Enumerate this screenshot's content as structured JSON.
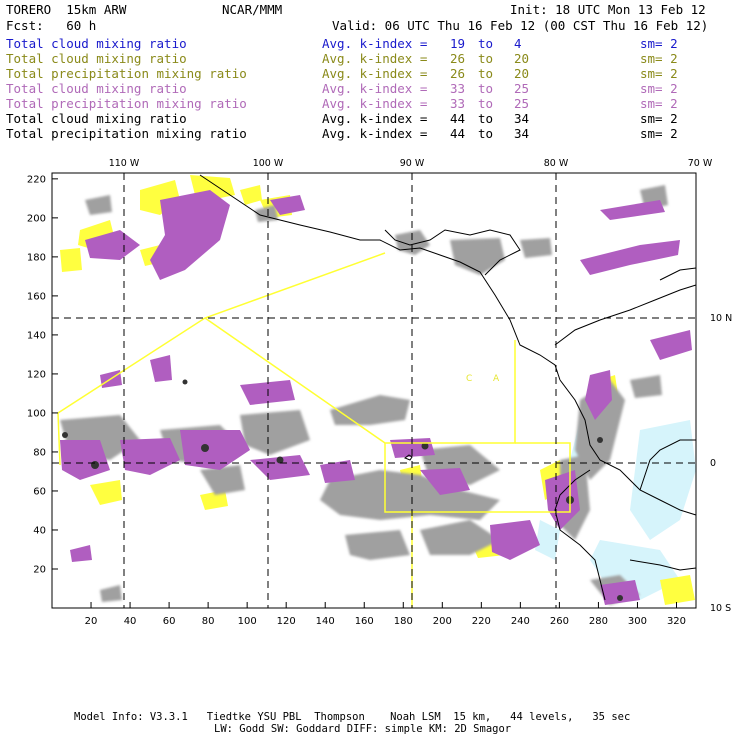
{
  "header": {
    "model": "TORERO  15km ARW",
    "org": "NCAR/MMM",
    "init": "Init: 18 UTC Mon 13 Feb 12",
    "fcst": "Fcst:   60 h",
    "valid": "Valid: 06 UTC Thu 16 Feb 12 (00 CST Thu 16 Feb 12)"
  },
  "legend": [
    {
      "field": "Total cloud mixing ratio",
      "kindex": "Avg. k-index = ",
      "hi": "19",
      "to": "to",
      "lo": "4",
      "sm": "sm= 2",
      "color": "#1a1acc"
    },
    {
      "field": "Total cloud mixing ratio",
      "kindex": "Avg. k-index = ",
      "hi": "26",
      "to": "to",
      "lo": "20",
      "sm": "sm= 2",
      "color": "#8a8a1a"
    },
    {
      "field": "Total precipitation mixing ratio",
      "kindex": "Avg. k-index = ",
      "hi": "26",
      "to": "to",
      "lo": "20",
      "sm": "sm= 2",
      "color": "#8a8a1a"
    },
    {
      "field": "Total cloud mixing ratio",
      "kindex": "Avg. k-index = ",
      "hi": "33",
      "to": "to",
      "lo": "25",
      "sm": "sm= 2",
      "color": "#b06ab8"
    },
    {
      "field": "Total precipitation mixing ratio",
      "kindex": "Avg. k-index = ",
      "hi": "33",
      "to": "to",
      "lo": "25",
      "sm": "sm= 2",
      "color": "#b06ab8"
    },
    {
      "field": "Total cloud mixing ratio",
      "kindex": "Avg. k-index = ",
      "hi": "44",
      "to": "to",
      "lo": "34",
      "sm": "sm= 2",
      "color": "#000000"
    },
    {
      "field": "Total precipitation mixing ratio",
      "kindex": "Avg. k-index = ",
      "hi": "44",
      "to": "to",
      "lo": "34",
      "sm": "sm= 2",
      "color": "#000000"
    }
  ],
  "map": {
    "grid_x_ticks": [
      "20",
      "40",
      "60",
      "80",
      "100",
      "120",
      "140",
      "160",
      "180",
      "200",
      "220",
      "240",
      "260",
      "280",
      "300",
      "320"
    ],
    "grid_y_ticks": [
      "20",
      "40",
      "60",
      "80",
      "100",
      "120",
      "140",
      "160",
      "180",
      "200",
      "220"
    ],
    "lon_labels": [
      "110 W",
      "100 W",
      "90 W",
      "80 W",
      "70 W"
    ],
    "lat_labels": [
      "10 N",
      "0",
      "10 S"
    ],
    "region_labels": [
      "C",
      "A"
    ],
    "colors": {
      "gray_cloud": "#a0a0a0",
      "dark_core": "#333333",
      "purple": "#b05ec0",
      "yellow": "#ffff40",
      "light_blue": "#d6f4fb",
      "outline": "#ffff33"
    }
  },
  "footer": {
    "line1": "Model Info: V3.3.1   Tiedtke YSU PBL  Thompson    Noah LSM  15 km,   44 levels,   35 sec",
    "line2": "LW: Godd SW: Goddard DIFF: simple KM: 2D Smagor"
  }
}
